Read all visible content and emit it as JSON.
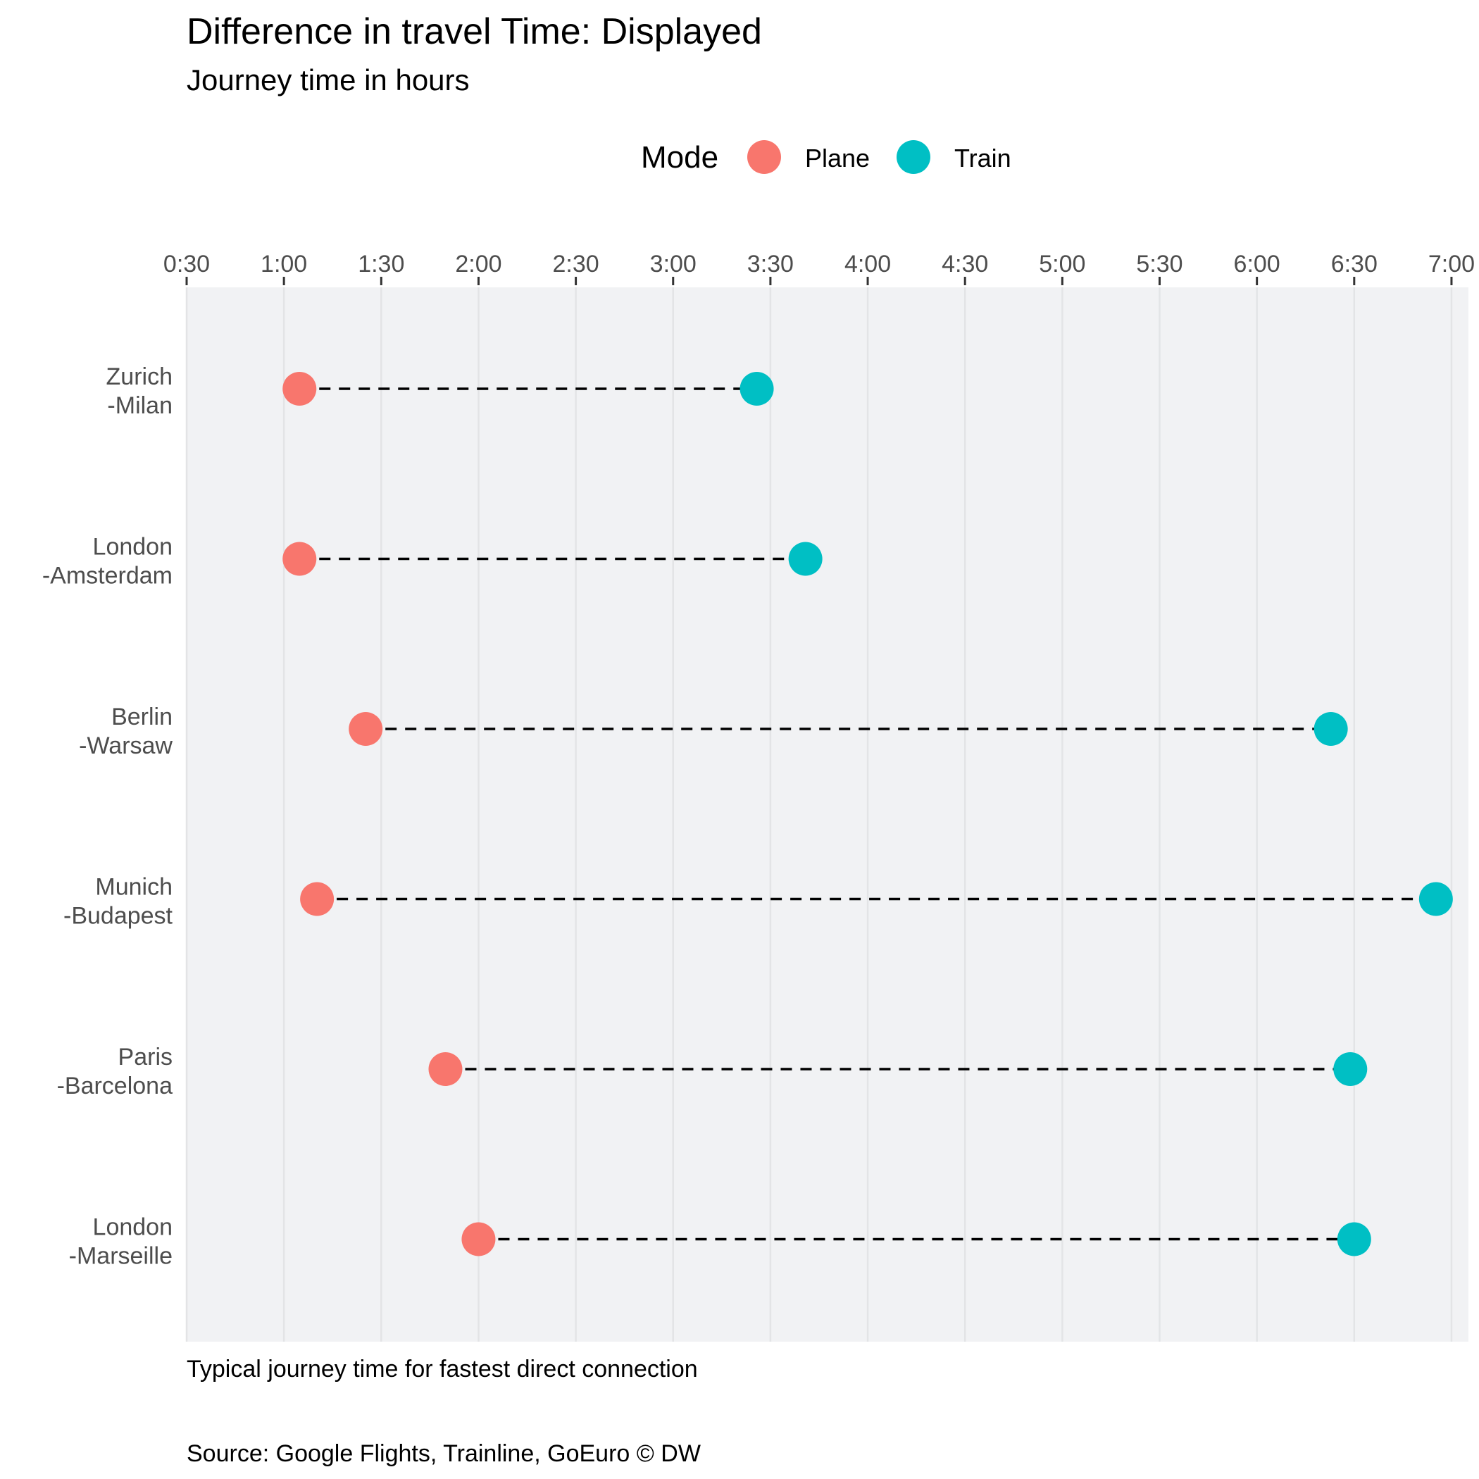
{
  "chart_data": {
    "type": "dumbbell",
    "title": "Difference in travel Time: Displayed",
    "subtitle": "Journey time in hours",
    "legend": {
      "title": "Mode",
      "position": "top",
      "entries": [
        {
          "label": "Plane",
          "color": "#F8766D"
        },
        {
          "label": "Train",
          "color": "#00BFC4"
        }
      ]
    },
    "x_axis": {
      "position": "top",
      "unit": "hours",
      "range": [
        0.5,
        7.1
      ],
      "ticks": [
        {
          "value": 0.5,
          "label": "0:30"
        },
        {
          "value": 1.0,
          "label": "1:00"
        },
        {
          "value": 1.5,
          "label": "1:30"
        },
        {
          "value": 2.0,
          "label": "2:00"
        },
        {
          "value": 2.5,
          "label": "2:30"
        },
        {
          "value": 3.0,
          "label": "3:00"
        },
        {
          "value": 3.5,
          "label": "3:30"
        },
        {
          "value": 4.0,
          "label": "4:00"
        },
        {
          "value": 4.5,
          "label": "4:30"
        },
        {
          "value": 5.0,
          "label": "5:00"
        },
        {
          "value": 5.5,
          "label": "5:30"
        },
        {
          "value": 6.0,
          "label": "6:00"
        },
        {
          "value": 6.5,
          "label": "6:30"
        },
        {
          "value": 7.0,
          "label": "7:00"
        }
      ]
    },
    "grid": "vertical",
    "categories": [
      {
        "line1": "Zurich",
        "line2": "-Milan"
      },
      {
        "line1": "London",
        "line2": "-Amsterdam"
      },
      {
        "line1": "Berlin",
        "line2": "-Warsaw"
      },
      {
        "line1": "Munich",
        "line2": "-Budapest"
      },
      {
        "line1": "Paris",
        "line2": "-Barcelona"
      },
      {
        "line1": "London",
        "line2": "-Marseille"
      }
    ],
    "series": [
      {
        "name": "Plane",
        "color": "#F8766D",
        "values": [
          1.08,
          1.08,
          1.42,
          1.17,
          1.83,
          2.0
        ]
      },
      {
        "name": "Train",
        "color": "#00BFC4",
        "values": [
          3.43,
          3.68,
          6.38,
          6.92,
          6.48,
          6.5
        ]
      }
    ],
    "caption_lines": [
      "Typical journey time for fastest direct connection",
      "Source: Google Flights, Trainline, GoEuro © DW"
    ]
  }
}
